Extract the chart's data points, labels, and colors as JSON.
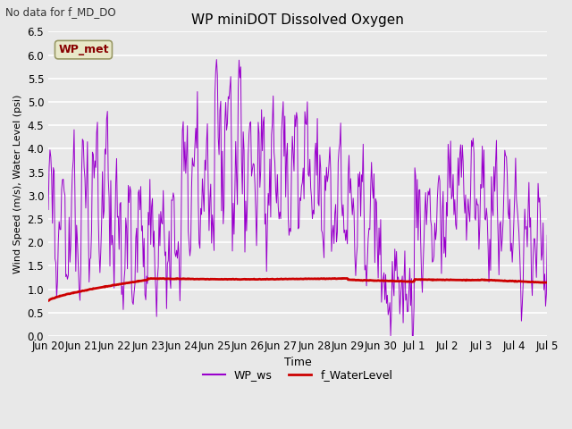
{
  "title": "WP miniDOT Dissolved Oxygen",
  "subtitle": "No data for f_MD_DO",
  "ylabel": "Wind Speed (m/s), Water Level (psi)",
  "xlabel": "Time",
  "ylim": [
    0.0,
    6.5
  ],
  "bg_color": "#e8e8e8",
  "plot_bg_color": "#e8e8e8",
  "annotation_box_label": "WP_met",
  "annotation_box_color": "#e8e8c8",
  "annotation_text_color": "#880000",
  "legend_entries": [
    "WP_ws",
    "f_WaterLevel"
  ],
  "ws_color": "#9900cc",
  "wl_color": "#cc0000",
  "x_tick_labels": [
    "Jun 20",
    "Jun 21",
    "Jun 22",
    "Jun 23",
    "Jun 24",
    "Jun 25",
    "Jun 26",
    "Jun 27",
    "Jun 28",
    "Jun 29",
    "Jun 30",
    "Jul 1",
    "Jul 2",
    "Jul 3",
    "Jul 4",
    "Jul 5"
  ],
  "seed": 42
}
